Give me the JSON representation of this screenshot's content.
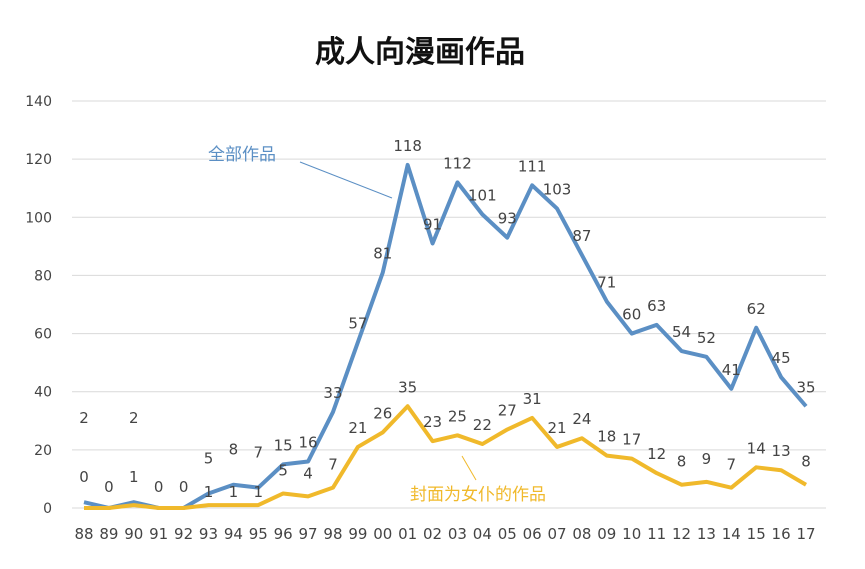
{
  "chart_data": {
    "type": "line",
    "title": "成人向漫画作品",
    "categories": [
      "88",
      "89",
      "90",
      "91",
      "92",
      "93",
      "94",
      "95",
      "96",
      "97",
      "98",
      "99",
      "00",
      "01",
      "02",
      "03",
      "04",
      "05",
      "06",
      "07",
      "08",
      "09",
      "10",
      "11",
      "12",
      "13",
      "14",
      "15",
      "16",
      "17"
    ],
    "ylim": [
      0,
      140
    ],
    "yticks": [
      0,
      20,
      40,
      60,
      80,
      100,
      120,
      140
    ],
    "grid": true,
    "series": [
      {
        "name": "全部作品",
        "color": "#5b8fc4",
        "values": [
          2,
          0,
          2,
          0,
          0,
          5,
          8,
          7,
          15,
          16,
          33,
          57,
          81,
          118,
          91,
          112,
          101,
          93,
          111,
          103,
          87,
          71,
          60,
          63,
          54,
          52,
          41,
          62,
          45,
          35
        ]
      },
      {
        "name": "封面为女仆的作品",
        "color": "#f0b92b",
        "values": [
          0,
          0,
          1,
          0,
          0,
          1,
          1,
          1,
          5,
          4,
          7,
          21,
          26,
          35,
          23,
          25,
          22,
          27,
          31,
          21,
          24,
          18,
          17,
          12,
          8,
          9,
          7,
          14,
          13,
          8
        ]
      }
    ]
  }
}
